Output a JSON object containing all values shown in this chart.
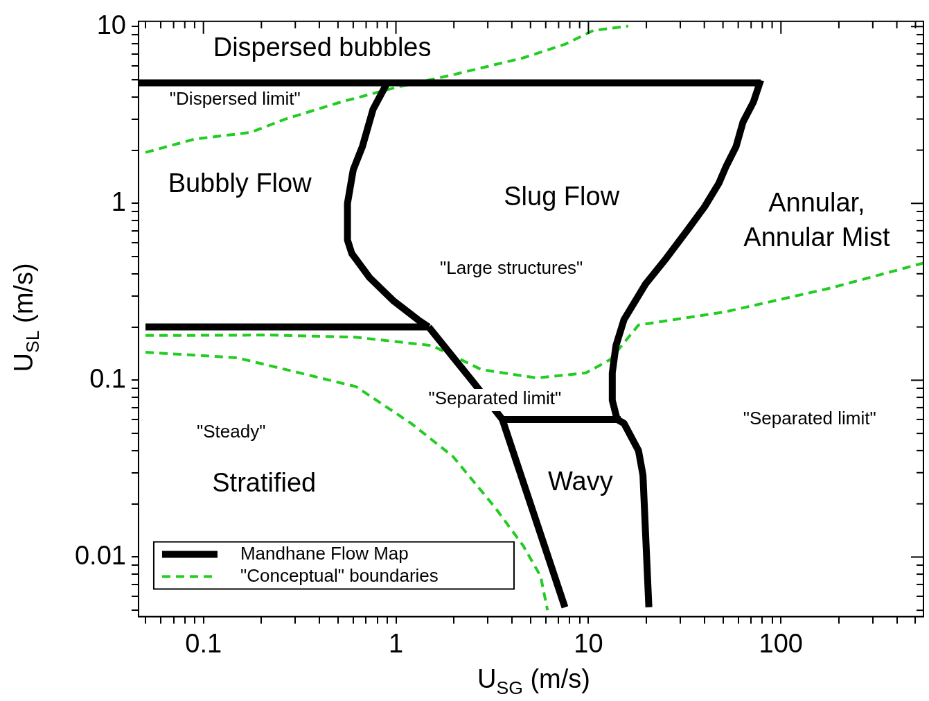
{
  "chart_data": {
    "type": "line",
    "xlabel": "U$_{SG}$ (m/s)",
    "ylabel": "U$_{SL}$ (m/s)",
    "log": "xy",
    "grid": false,
    "legend": "bottom left",
    "marker": "none",
    "xlim": [
      0.046,
      550
    ],
    "ylim": [
      0.0046,
      10.7
    ],
    "xticks": [
      {
        "value": 0.05,
        "label": null
      },
      {
        "value": 0.06,
        "label": null
      },
      {
        "value": 0.07,
        "label": null
      },
      {
        "value": 0.08,
        "label": null
      },
      {
        "value": 0.09,
        "label": null
      },
      0.1,
      {
        "value": 0.2,
        "label": null
      },
      {
        "value": 0.3,
        "label": null
      },
      {
        "value": 0.4,
        "label": null
      },
      {
        "value": 0.5,
        "label": null
      },
      {
        "value": 0.6,
        "label": null
      },
      {
        "value": 0.7,
        "label": null
      },
      {
        "value": 0.8,
        "label": null
      },
      {
        "value": 0.9,
        "label": null
      },
      1,
      {
        "value": 2,
        "label": null
      },
      {
        "value": 3,
        "label": null
      },
      {
        "value": 4,
        "label": null
      },
      {
        "value": 5,
        "label": null
      },
      {
        "value": 6,
        "label": null
      },
      {
        "value": 7,
        "label": null
      },
      {
        "value": 8,
        "label": null
      },
      {
        "value": 9,
        "label": null
      },
      10,
      {
        "value": 20,
        "label": null
      },
      {
        "value": 30,
        "label": null
      },
      {
        "value": 40,
        "label": null
      },
      {
        "value": 50,
        "label": null
      },
      {
        "value": 60,
        "label": null
      },
      {
        "value": 70,
        "label": null
      },
      {
        "value": 80,
        "label": null
      },
      {
        "value": 90,
        "label": null
      },
      100,
      {
        "value": 200,
        "label": null
      },
      {
        "value": 300,
        "label": null
      },
      {
        "value": 400,
        "label": null
      },
      {
        "value": 500,
        "label": null
      }
    ],
    "yticks": [
      {
        "value": 0.005,
        "label": null
      },
      {
        "value": 0.006,
        "label": null
      },
      {
        "value": 0.007,
        "label": null
      },
      {
        "value": 0.008,
        "label": null
      },
      {
        "value": 0.009,
        "label": null
      },
      0.01,
      {
        "value": 0.02,
        "label": null
      },
      {
        "value": 0.03,
        "label": null
      },
      {
        "value": 0.04,
        "label": null
      },
      {
        "value": 0.05,
        "label": null
      },
      {
        "value": 0.06,
        "label": null
      },
      {
        "value": 0.07,
        "label": null
      },
      {
        "value": 0.08,
        "label": null
      },
      {
        "value": 0.09,
        "label": null
      },
      0.1,
      {
        "value": 0.2,
        "label": null
      },
      {
        "value": 0.3,
        "label": null
      },
      {
        "value": 0.4,
        "label": null
      },
      {
        "value": 0.5,
        "label": null
      },
      {
        "value": 0.6,
        "label": null
      },
      {
        "value": 0.7,
        "label": null
      },
      {
        "value": 0.8,
        "label": null
      },
      {
        "value": 0.9,
        "label": null
      },
      1,
      {
        "value": 2,
        "label": null
      },
      {
        "value": 3,
        "label": null
      },
      {
        "value": 4,
        "label": null
      },
      {
        "value": 5,
        "label": null
      },
      {
        "value": 6,
        "label": null
      },
      {
        "value": 7,
        "label": null
      },
      {
        "value": 8,
        "label": null
      },
      {
        "value": 9,
        "label": null
      },
      10
    ],
    "series": [
      {
        "name": "Mandhane Flow Map",
        "color": "#000000",
        "line_style": "solid",
        "x": [
          0.046,
          78.5,
          null,
          0.9,
          0.76,
          0.67,
          0.6,
          0.56,
          0.56,
          0.59,
          0.73,
          0.975,
          1.3,
          1.48,
          null,
          0.05,
          1.48,
          null,
          1.48,
          2.55,
          3.57,
          7.55,
          null,
          3.57,
          14.7,
          null,
          78.5,
          72,
          63.5,
          58.5,
          51.9,
          47.6,
          40.2,
          32.5,
          25.4,
          19.8,
          15.3,
          13.9,
          13.3,
          13.3,
          14.1,
          15.3,
          18.2,
          19.2,
          20.6
        ],
        "values": [
          4.8,
          4.8,
          null,
          4.8,
          3.4,
          2.1,
          1.55,
          1,
          0.62,
          0.52,
          0.38,
          0.28,
          0.22,
          0.2,
          null,
          0.2,
          0.2,
          null,
          0.2,
          0.096,
          0.06,
          0.0052,
          null,
          0.06,
          0.06,
          null,
          4.97,
          3.75,
          2.88,
          2.1,
          1.62,
          1.3,
          0.96,
          0.7,
          0.49,
          0.35,
          0.22,
          0.157,
          0.11,
          0.077,
          0.06,
          0.057,
          0.04,
          0.029,
          0.0052
        ]
      },
      {
        "name": "\"Conceptual\" boundaries",
        "color": "#22cc22",
        "line_style": "dashed",
        "x": [
          0.05,
          0.09,
          0.176,
          0.267,
          0.52,
          1.02,
          1.98,
          4.58,
          7.55,
          10.6,
          16.1,
          null,
          0.05,
          0.226,
          0.62,
          1.54,
          2.77,
          5.4,
          9.7,
          13,
          18.2,
          51.8,
          181,
          550,
          null,
          0.05,
          0.149,
          0.267,
          0.62,
          1.2,
          1.98,
          3.28,
          4.58,
          5.64,
          6.13
        ],
        "values": [
          1.94,
          2.31,
          2.52,
          3.0,
          3.75,
          4.55,
          5.34,
          6.65,
          7.94,
          9.5,
          10.07,
          null,
          0.179,
          0.18,
          0.175,
          0.157,
          0.115,
          0.103,
          0.11,
          0.131,
          0.205,
          0.244,
          0.332,
          0.46,
          null,
          0.144,
          0.134,
          0.115,
          0.092,
          0.057,
          0.037,
          0.019,
          0.0116,
          0.0078,
          0.005
        ]
      }
    ],
    "annotations": [
      "Dispersed bubbles",
      "\"Dispersed limit\"",
      "Bubbly Flow",
      "Slug Flow",
      "Annular,\nAnnular Mist",
      "\"Large structures\"",
      "\"Separated limit\"",
      "\"Separated limit\"",
      "\"Steady\"",
      "Stratified",
      "Wavy"
    ]
  }
}
